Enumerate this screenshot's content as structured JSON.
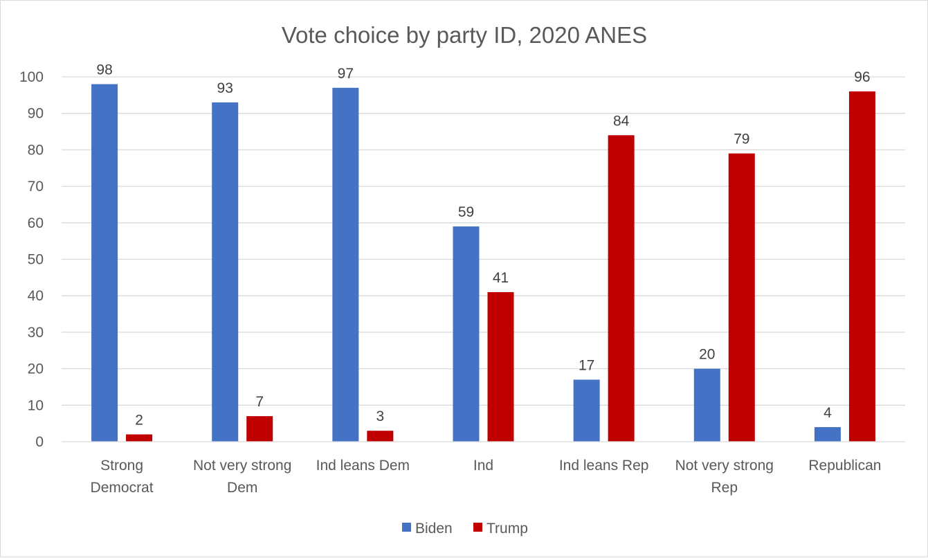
{
  "chart_data": {
    "type": "bar",
    "title": "Vote choice by party ID, 2020 ANES",
    "xlabel": "",
    "ylabel": "",
    "ylim": [
      0,
      100
    ],
    "yticks": [
      "0",
      "10",
      "20",
      "30",
      "40",
      "50",
      "60",
      "70",
      "80",
      "90",
      "100"
    ],
    "categories": [
      [
        "Strong",
        "Democrat"
      ],
      [
        "Not very strong",
        "Dem"
      ],
      [
        "Ind leans Dem"
      ],
      [
        "Ind"
      ],
      [
        "Ind leans Rep"
      ],
      [
        "Not very strong",
        "Rep"
      ],
      [
        "Republican"
      ]
    ],
    "series": [
      {
        "name": "Biden",
        "color": "#4472c4",
        "values": [
          98,
          93,
          97,
          59,
          17,
          20,
          4
        ]
      },
      {
        "name": "Trump",
        "color": "#c00000",
        "values": [
          2,
          7,
          3,
          41,
          84,
          79,
          96
        ]
      }
    ],
    "grid": true,
    "legend_position": "bottom",
    "data_labels": true
  }
}
